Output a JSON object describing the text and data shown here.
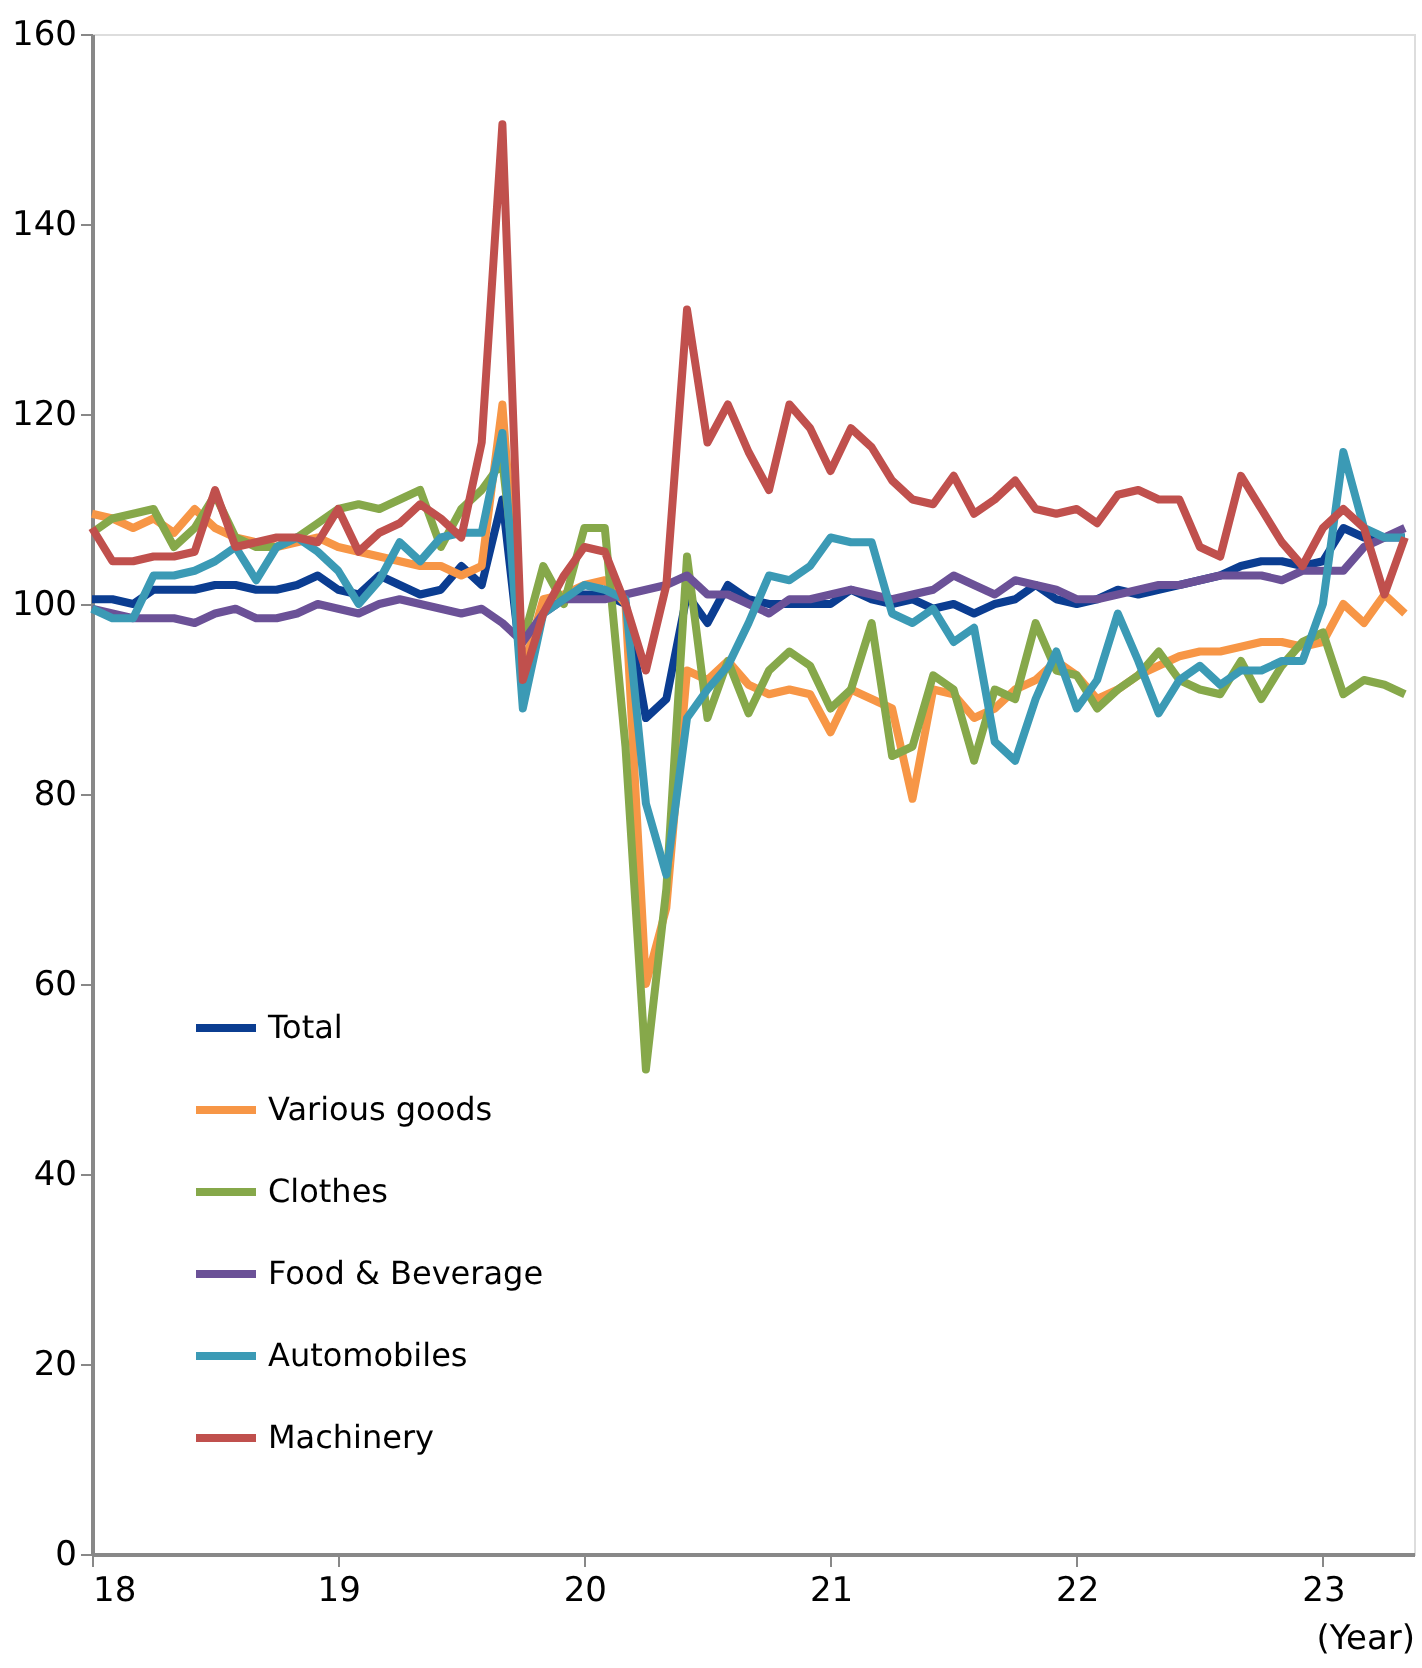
{
  "chart_data": {
    "type": "line",
    "xlabel": "(Year)",
    "x": [
      18,
      18.083,
      18.167,
      18.25,
      18.333,
      18.417,
      18.5,
      18.583,
      18.667,
      18.75,
      18.833,
      18.917,
      19,
      19.083,
      19.167,
      19.25,
      19.333,
      19.417,
      19.5,
      19.583,
      19.667,
      19.75,
      19.833,
      19.917,
      20,
      20.083,
      20.167,
      20.25,
      20.333,
      20.417,
      20.5,
      20.583,
      20.667,
      20.75,
      20.833,
      20.917,
      21,
      21.083,
      21.167,
      21.25,
      21.333,
      21.417,
      21.5,
      21.583,
      21.667,
      21.75,
      21.833,
      21.917,
      22,
      22.083,
      22.167,
      22.25,
      22.333,
      22.417,
      22.5,
      22.583,
      22.667,
      22.75,
      22.833,
      22.917,
      23,
      23.083,
      23.167,
      23.25,
      23.333
    ],
    "series": [
      {
        "name": "Total",
        "color": "#0b3d91",
        "values": [
          100.5,
          100.5,
          100,
          101.5,
          101.5,
          101.5,
          102,
          102,
          101.5,
          101.5,
          102,
          103,
          101.5,
          101,
          103,
          102,
          101,
          101.5,
          104,
          102,
          111,
          92,
          100,
          100.5,
          101,
          101,
          100,
          88,
          90,
          101,
          98,
          102,
          100.5,
          100,
          100,
          100,
          100,
          101.5,
          100.5,
          100,
          100.5,
          99.5,
          100,
          99,
          100,
          100.5,
          102,
          100.5,
          100,
          100.5,
          101.5,
          101,
          101.5,
          102,
          102.5,
          103,
          104,
          104.5,
          104.5,
          104,
          104.5,
          108,
          107,
          107,
          107
        ]
      },
      {
        "name": "Various goods",
        "color": "#f79646",
        "values": [
          109.5,
          109,
          108,
          109,
          107.5,
          110,
          108,
          107,
          106.5,
          106,
          106.5,
          107,
          106,
          105.5,
          105,
          104.5,
          104,
          104,
          103,
          104,
          121,
          93,
          100.5,
          101,
          102,
          102.5,
          100,
          60,
          68,
          93,
          92,
          94,
          91.5,
          90.5,
          91,
          90.5,
          86.5,
          91,
          90,
          89,
          79.5,
          91,
          90.5,
          88,
          89,
          91,
          92,
          94,
          92.5,
          90,
          91,
          92.5,
          93.5,
          94.5,
          95,
          95,
          95.5,
          96,
          96,
          95.5,
          96,
          100,
          98,
          101,
          99
        ]
      },
      {
        "name": "Clothes",
        "color": "#86a84a",
        "values": [
          107.5,
          109,
          109.5,
          110,
          106,
          108,
          111.5,
          107,
          106,
          106,
          107,
          108.5,
          110,
          110.5,
          110,
          111,
          112,
          106,
          110,
          112,
          115,
          96,
          104,
          100,
          108,
          108,
          85,
          51,
          70,
          105,
          88,
          94,
          88.5,
          93,
          95,
          93.5,
          89,
          91,
          98,
          84,
          85,
          92.5,
          91,
          83.5,
          91,
          90,
          98,
          93,
          92.5,
          89,
          91,
          92.5,
          95,
          92,
          91,
          90.5,
          94,
          90,
          93.5,
          96,
          97,
          90.5,
          92,
          91.5,
          90.5
        ]
      },
      {
        "name": "Food & Beverage",
        "color": "#6b5197",
        "values": [
          99.5,
          99,
          98.5,
          98.5,
          98.5,
          98,
          99,
          99.5,
          98.5,
          98.5,
          99,
          100,
          99.5,
          99,
          100,
          100.5,
          100,
          99.5,
          99,
          99.5,
          98,
          96,
          99,
          100.5,
          100.5,
          100.5,
          101,
          101.5,
          102,
          103,
          101,
          101,
          100,
          99,
          100.5,
          100.5,
          101,
          101.5,
          101,
          100.5,
          101,
          101.5,
          103,
          102,
          101,
          102.5,
          102,
          101.5,
          100.5,
          100.5,
          101,
          101.5,
          102,
          102,
          102.5,
          103,
          103,
          103,
          102.5,
          103.5,
          103.5,
          103.5,
          106,
          107,
          108
        ]
      },
      {
        "name": "Automobiles",
        "color": "#3b9ab5",
        "values": [
          99.5,
          98.5,
          98.5,
          103,
          103,
          103.5,
          104.5,
          106,
          102.5,
          106,
          107,
          105.5,
          103.5,
          100,
          102.5,
          106.5,
          104.5,
          107,
          107.5,
          107.5,
          118,
          89,
          99,
          100.5,
          102,
          101.5,
          100.5,
          79,
          71.5,
          88,
          91,
          93.5,
          98,
          103,
          102.5,
          104,
          107,
          106.5,
          106.5,
          99,
          98,
          99.5,
          96,
          97.5,
          85.5,
          83.5,
          90,
          95,
          89,
          92,
          99,
          94,
          88.5,
          92,
          93.5,
          91.5,
          93,
          93,
          94,
          94,
          100,
          116,
          108,
          107,
          107
        ]
      },
      {
        "name": "Machinery",
        "color": "#c0504d",
        "values": [
          108,
          104.5,
          104.5,
          105,
          105,
          105.5,
          112,
          106,
          106.5,
          107,
          107,
          106.5,
          110,
          105.5,
          107.5,
          108.5,
          110.5,
          109,
          107,
          117,
          150.5,
          92,
          99,
          103,
          106,
          105.5,
          100,
          93,
          102,
          131,
          117,
          121,
          116,
          112,
          121,
          118.5,
          114,
          118.5,
          116.5,
          113,
          111,
          110.5,
          113.5,
          109.5,
          111,
          113,
          110,
          109.5,
          110,
          108.5,
          111.5,
          112,
          111,
          111,
          106,
          105,
          113.5,
          110,
          106.5,
          104,
          108,
          110,
          108,
          101,
          107
        ]
      }
    ],
    "xlim": [
      18,
      23.37
    ],
    "xticks": [
      18,
      19,
      20,
      21,
      22,
      23
    ],
    "ylim": [
      0,
      160
    ],
    "yticks": [
      0,
      20,
      40,
      60,
      80,
      100,
      120,
      140,
      160
    ],
    "grid": false,
    "legend": "bottom left",
    "marker": "none",
    "line_style": "solid"
  }
}
